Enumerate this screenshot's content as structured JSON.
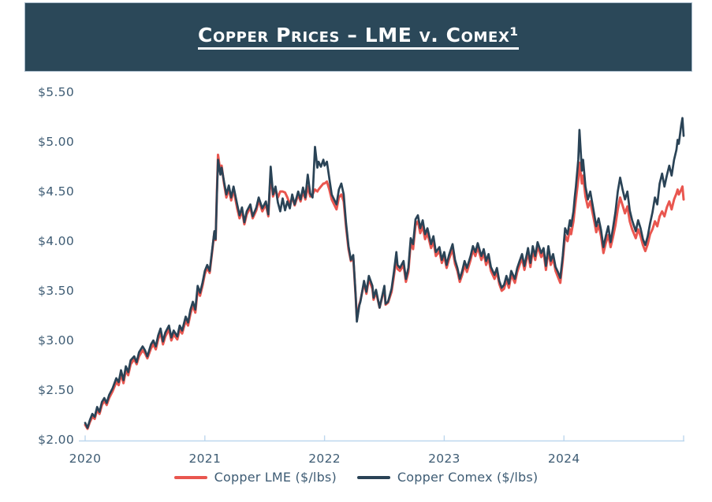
{
  "header": {
    "title": "Copper Prices – LME v. Comex¹",
    "bg_color": "#2b4859",
    "text_color": "#ffffff"
  },
  "colors": {
    "lme_red": "#e9564f",
    "comex_navy": "#2a4356",
    "axis_blue": "#bdd7ee",
    "label_slate": "#3e5c74"
  },
  "chart_data": {
    "type": "line",
    "title": "Copper Prices – LME v. Comex¹",
    "grid": false,
    "legend_position": "bottom",
    "x_unit": "decimal_year",
    "y_unit": "$/lbs",
    "x_axis": {
      "range": [
        2020,
        2025
      ],
      "ticks": [
        {
          "v": 2020,
          "label": "2020"
        },
        {
          "v": 2021,
          "label": "2021"
        },
        {
          "v": 2022,
          "label": "2022"
        },
        {
          "v": 2023,
          "label": "2023"
        },
        {
          "v": 2024,
          "label": "2024"
        },
        {
          "v": 2025,
          "label": ""
        }
      ]
    },
    "y_axis": {
      "range": [
        2.0,
        5.5
      ],
      "ticks": [
        {
          "v": 5.5,
          "label": "$5.50"
        },
        {
          "v": 5.0,
          "label": "$5.00"
        },
        {
          "v": 4.5,
          "label": "$4.50"
        },
        {
          "v": 4.0,
          "label": "$4.00"
        },
        {
          "v": 3.5,
          "label": "$3.50"
        },
        {
          "v": 3.0,
          "label": "$3.00"
        },
        {
          "v": 2.5,
          "label": "$2.50"
        },
        {
          "v": 2.0,
          "label": "$2.00"
        }
      ]
    },
    "x": [
      2020.0,
      2020.02,
      2020.04,
      2020.06,
      2020.08,
      2020.1,
      2020.12,
      2020.14,
      2020.16,
      2020.18,
      2020.2,
      2020.23,
      2020.26,
      2020.28,
      2020.3,
      2020.32,
      2020.34,
      2020.36,
      2020.38,
      2020.41,
      2020.43,
      2020.45,
      2020.48,
      2020.5,
      2020.52,
      2020.55,
      2020.57,
      2020.59,
      2020.61,
      2020.63,
      2020.65,
      2020.67,
      2020.7,
      2020.72,
      2020.74,
      2020.77,
      2020.79,
      2020.81,
      2020.84,
      2020.86,
      2020.88,
      2020.9,
      2020.92,
      2020.94,
      2020.96,
      2020.98,
      2021.0,
      2021.02,
      2021.04,
      2021.06,
      2021.08,
      2021.09,
      2021.1,
      2021.11,
      2021.13,
      2021.14,
      2021.16,
      2021.18,
      2021.2,
      2021.22,
      2021.24,
      2021.27,
      2021.29,
      2021.31,
      2021.33,
      2021.35,
      2021.38,
      2021.4,
      2021.43,
      2021.45,
      2021.48,
      2021.51,
      2021.53,
      2021.55,
      2021.57,
      2021.59,
      2021.61,
      2021.63,
      2021.65,
      2021.67,
      2021.69,
      2021.71,
      2021.73,
      2021.75,
      2021.78,
      2021.8,
      2021.82,
      2021.84,
      2021.86,
      2021.88,
      2021.9,
      2021.92,
      2021.94,
      2021.95,
      2021.97,
      2021.99,
      2022.0,
      2022.02,
      2022.04,
      2022.06,
      2022.08,
      2022.1,
      2022.12,
      2022.14,
      2022.16,
      2022.18,
      2022.2,
      2022.22,
      2022.24,
      2022.26,
      2022.27,
      2022.29,
      2022.3,
      2022.33,
      2022.35,
      2022.37,
      2022.4,
      2022.41,
      2022.43,
      2022.46,
      2022.48,
      2022.5,
      2022.51,
      2022.53,
      2022.56,
      2022.58,
      2022.6,
      2022.61,
      2022.63,
      2022.66,
      2022.68,
      2022.7,
      2022.72,
      2022.74,
      2022.76,
      2022.78,
      2022.8,
      2022.82,
      2022.84,
      2022.86,
      2022.89,
      2022.91,
      2022.93,
      2022.96,
      2022.98,
      2023.0,
      2023.02,
      2023.04,
      2023.07,
      2023.09,
      2023.11,
      2023.13,
      2023.15,
      2023.17,
      2023.19,
      2023.22,
      2023.24,
      2023.26,
      2023.28,
      2023.31,
      2023.33,
      2023.35,
      2023.37,
      2023.39,
      2023.42,
      2023.44,
      2023.46,
      2023.48,
      2023.5,
      2023.52,
      2023.54,
      2023.56,
      2023.59,
      2023.61,
      2023.63,
      2023.65,
      2023.67,
      2023.7,
      2023.72,
      2023.74,
      2023.76,
      2023.78,
      2023.81,
      2023.83,
      2023.85,
      2023.87,
      2023.89,
      2023.91,
      2023.93,
      2023.95,
      2023.97,
      2023.99,
      2024.01,
      2024.03,
      2024.05,
      2024.06,
      2024.08,
      2024.09,
      2024.1,
      2024.12,
      2024.13,
      2024.15,
      2024.16,
      2024.18,
      2024.2,
      2024.22,
      2024.25,
      2024.27,
      2024.29,
      2024.31,
      2024.33,
      2024.35,
      2024.37,
      2024.39,
      2024.41,
      2024.43,
      2024.45,
      2024.47,
      2024.49,
      2024.51,
      2024.53,
      2024.55,
      2024.57,
      2024.6,
      2024.62,
      2024.64,
      2024.66,
      2024.68,
      2024.7,
      2024.72,
      2024.74,
      2024.76,
      2024.78,
      2024.8,
      2024.82,
      2024.84,
      2024.86,
      2024.88,
      2024.9,
      2024.92,
      2024.94,
      2024.95,
      2024.96,
      2024.98,
      2024.99,
      2025.0
    ],
    "series": [
      {
        "name": "Copper LME ($/lbs)",
        "color": "#e9564f",
        "values": [
          2.15,
          2.11,
          2.18,
          2.23,
          2.21,
          2.3,
          2.26,
          2.35,
          2.39,
          2.35,
          2.42,
          2.49,
          2.58,
          2.55,
          2.66,
          2.57,
          2.7,
          2.65,
          2.76,
          2.81,
          2.76,
          2.84,
          2.9,
          2.87,
          2.82,
          2.92,
          2.96,
          2.91,
          3.01,
          3.08,
          2.96,
          3.04,
          3.11,
          3.0,
          3.06,
          3.01,
          3.11,
          3.07,
          3.2,
          3.15,
          3.27,
          3.35,
          3.28,
          3.51,
          3.45,
          3.55,
          3.67,
          3.73,
          3.68,
          3.88,
          4.09,
          4.01,
          4.47,
          4.87,
          4.7,
          4.76,
          4.58,
          4.44,
          4.53,
          4.41,
          4.52,
          4.33,
          4.23,
          4.31,
          4.17,
          4.27,
          4.34,
          4.23,
          4.31,
          4.41,
          4.3,
          4.37,
          4.25,
          4.68,
          4.45,
          4.52,
          4.44,
          4.5,
          4.5,
          4.49,
          4.44,
          4.37,
          4.44,
          4.36,
          4.47,
          4.4,
          4.5,
          4.42,
          4.55,
          4.45,
          4.47,
          4.52,
          4.5,
          4.52,
          4.55,
          4.58,
          4.58,
          4.6,
          4.52,
          4.42,
          4.37,
          4.32,
          4.44,
          4.47,
          4.4,
          4.14,
          3.92,
          3.8,
          3.84,
          3.44,
          3.21,
          3.36,
          3.4,
          3.58,
          3.47,
          3.62,
          3.52,
          3.41,
          3.49,
          3.33,
          3.43,
          3.52,
          3.36,
          3.38,
          3.49,
          3.65,
          3.84,
          3.72,
          3.7,
          3.76,
          3.59,
          3.69,
          3.98,
          3.92,
          4.16,
          4.2,
          4.08,
          4.15,
          4.02,
          4.08,
          3.93,
          4.0,
          3.85,
          3.9,
          3.78,
          3.85,
          3.73,
          3.82,
          3.92,
          3.77,
          3.7,
          3.59,
          3.66,
          3.76,
          3.69,
          3.81,
          3.91,
          3.85,
          3.94,
          3.81,
          3.88,
          3.76,
          3.83,
          3.7,
          3.62,
          3.69,
          3.57,
          3.5,
          3.52,
          3.61,
          3.53,
          3.66,
          3.58,
          3.69,
          3.76,
          3.83,
          3.71,
          3.89,
          3.74,
          3.91,
          3.81,
          3.95,
          3.84,
          3.89,
          3.71,
          3.91,
          3.76,
          3.83,
          3.7,
          3.64,
          3.58,
          3.8,
          4.06,
          4.0,
          4.12,
          4.07,
          4.2,
          4.32,
          4.42,
          4.62,
          4.79,
          4.58,
          4.66,
          4.45,
          4.34,
          4.4,
          4.22,
          4.09,
          4.16,
          4.05,
          3.88,
          3.98,
          4.06,
          3.94,
          4.04,
          4.16,
          4.32,
          4.44,
          4.36,
          4.28,
          4.35,
          4.2,
          4.12,
          4.03,
          4.12,
          4.05,
          3.96,
          3.9,
          3.97,
          4.07,
          4.12,
          4.2,
          4.15,
          4.25,
          4.3,
          4.25,
          4.34,
          4.4,
          4.32,
          4.42,
          4.48,
          4.52,
          4.47,
          4.52,
          4.55,
          4.42
        ]
      },
      {
        "name": "Copper Comex ($/lbs)",
        "color": "#2a4356",
        "values": [
          2.17,
          2.12,
          2.2,
          2.26,
          2.23,
          2.33,
          2.28,
          2.38,
          2.42,
          2.37,
          2.45,
          2.52,
          2.62,
          2.58,
          2.7,
          2.6,
          2.74,
          2.68,
          2.8,
          2.84,
          2.78,
          2.88,
          2.94,
          2.9,
          2.84,
          2.96,
          3.0,
          2.94,
          3.05,
          3.12,
          2.99,
          3.08,
          3.15,
          3.03,
          3.1,
          3.04,
          3.15,
          3.1,
          3.24,
          3.18,
          3.31,
          3.39,
          3.31,
          3.55,
          3.48,
          3.58,
          3.7,
          3.76,
          3.7,
          3.9,
          4.1,
          4.02,
          4.45,
          4.82,
          4.67,
          4.74,
          4.6,
          4.47,
          4.56,
          4.44,
          4.55,
          4.37,
          4.26,
          4.34,
          4.19,
          4.3,
          4.37,
          4.25,
          4.34,
          4.44,
          4.33,
          4.4,
          4.27,
          4.75,
          4.47,
          4.55,
          4.39,
          4.3,
          4.43,
          4.31,
          4.4,
          4.33,
          4.47,
          4.37,
          4.5,
          4.42,
          4.54,
          4.44,
          4.67,
          4.48,
          4.44,
          4.95,
          4.74,
          4.8,
          4.75,
          4.82,
          4.76,
          4.8,
          4.63,
          4.47,
          4.42,
          4.37,
          4.52,
          4.58,
          4.47,
          4.18,
          3.95,
          3.81,
          3.86,
          3.45,
          3.19,
          3.35,
          3.39,
          3.6,
          3.49,
          3.65,
          3.55,
          3.43,
          3.51,
          3.33,
          3.44,
          3.55,
          3.37,
          3.39,
          3.52,
          3.69,
          3.89,
          3.76,
          3.73,
          3.8,
          3.62,
          3.73,
          4.03,
          3.97,
          4.22,
          4.26,
          4.13,
          4.21,
          4.07,
          4.13,
          3.97,
          4.05,
          3.89,
          3.94,
          3.81,
          3.89,
          3.76,
          3.86,
          3.97,
          3.81,
          3.73,
          3.62,
          3.7,
          3.8,
          3.73,
          3.85,
          3.95,
          3.89,
          3.98,
          3.85,
          3.92,
          3.8,
          3.87,
          3.74,
          3.66,
          3.73,
          3.6,
          3.53,
          3.56,
          3.65,
          3.57,
          3.7,
          3.62,
          3.73,
          3.8,
          3.87,
          3.75,
          3.93,
          3.78,
          3.95,
          3.85,
          3.99,
          3.88,
          3.93,
          3.75,
          3.95,
          3.8,
          3.87,
          3.74,
          3.69,
          3.63,
          3.85,
          4.13,
          4.07,
          4.21,
          4.15,
          4.3,
          4.44,
          4.55,
          4.82,
          5.12,
          4.71,
          4.82,
          4.55,
          4.42,
          4.5,
          4.29,
          4.15,
          4.23,
          4.11,
          3.94,
          4.05,
          4.15,
          3.99,
          4.13,
          4.29,
          4.5,
          4.64,
          4.52,
          4.42,
          4.5,
          4.31,
          4.21,
          4.1,
          4.21,
          4.13,
          4.02,
          3.96,
          4.05,
          4.18,
          4.29,
          4.44,
          4.37,
          4.58,
          4.68,
          4.55,
          4.66,
          4.76,
          4.66,
          4.82,
          4.92,
          5.02,
          4.98,
          5.17,
          5.24,
          5.06
        ]
      }
    ]
  },
  "legend": {
    "items": [
      {
        "label": "Copper LME ($/lbs)",
        "color": "#e9564f"
      },
      {
        "label": "Copper Comex ($/lbs)",
        "color": "#2a4356"
      }
    ]
  }
}
